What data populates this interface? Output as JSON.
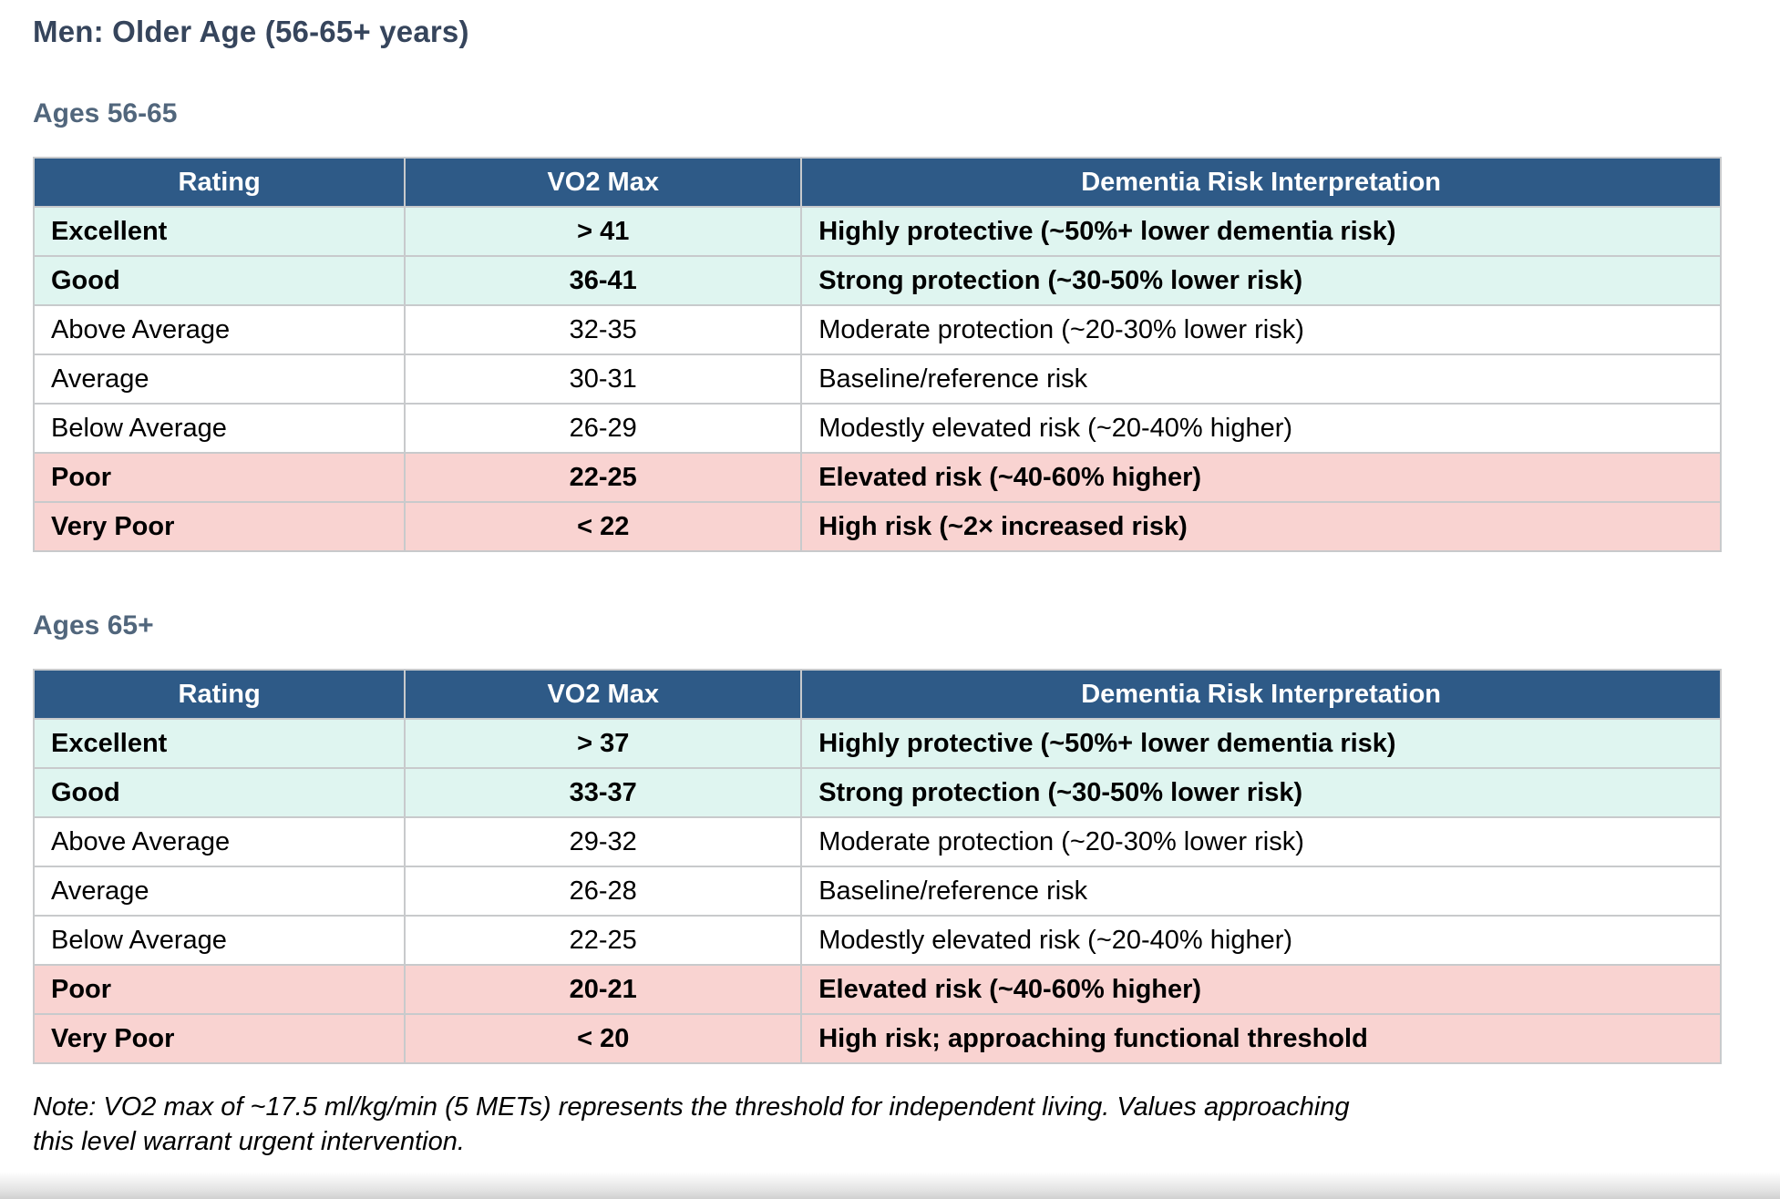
{
  "page": {
    "title": "Men: Older Age (56-65+ years)",
    "note": "Note: VO2 max of ~17.5 ml/kg/min (5 METs) represents the threshold for independent living. Values approaching this level warrant urgent intervention."
  },
  "colors": {
    "header_bg": "#2E5A87",
    "mint_bg": "#DFF5F0",
    "pink_bg": "#F9D3D1",
    "title_color": "#36455C",
    "subtitle_color": "#51667C",
    "border_color": "#C8CACC"
  },
  "chart_data": [
    {
      "type": "table",
      "title": "Ages 56-65",
      "columns": [
        "Rating",
        "VO2 Max",
        "Dementia Risk Interpretation"
      ],
      "rows": [
        {
          "rating": "Excellent",
          "vo2": "> 41",
          "interpretation": "Highly protective (~50%+ lower dementia risk)",
          "tone": "good",
          "bold": true
        },
        {
          "rating": "Good",
          "vo2": "36-41",
          "interpretation": "Strong protection (~30-50% lower risk)",
          "tone": "good",
          "bold": true
        },
        {
          "rating": "Above Average",
          "vo2": "32-35",
          "interpretation": "Moderate protection (~20-30% lower risk)",
          "tone": "neutral",
          "bold": false
        },
        {
          "rating": "Average",
          "vo2": "30-31",
          "interpretation": "Baseline/reference risk",
          "tone": "neutral",
          "bold": false
        },
        {
          "rating": "Below Average",
          "vo2": "26-29",
          "interpretation": "Modestly elevated risk (~20-40% higher)",
          "tone": "neutral",
          "bold": false
        },
        {
          "rating": "Poor",
          "vo2": "22-25",
          "interpretation": "Elevated risk (~40-60% higher)",
          "tone": "bad",
          "bold": true
        },
        {
          "rating": "Very Poor",
          "vo2": "< 22",
          "interpretation": "High risk (~2× increased risk)",
          "tone": "bad",
          "bold": true
        }
      ]
    },
    {
      "type": "table",
      "title": "Ages 65+",
      "columns": [
        "Rating",
        "VO2 Max",
        "Dementia Risk Interpretation"
      ],
      "rows": [
        {
          "rating": "Excellent",
          "vo2": "> 37",
          "interpretation": "Highly protective (~50%+ lower dementia risk)",
          "tone": "good",
          "bold": true
        },
        {
          "rating": "Good",
          "vo2": "33-37",
          "interpretation": "Strong protection (~30-50% lower risk)",
          "tone": "good",
          "bold": true
        },
        {
          "rating": "Above Average",
          "vo2": "29-32",
          "interpretation": "Moderate protection (~20-30% lower risk)",
          "tone": "neutral",
          "bold": false
        },
        {
          "rating": "Average",
          "vo2": "26-28",
          "interpretation": "Baseline/reference risk",
          "tone": "neutral",
          "bold": false
        },
        {
          "rating": "Below Average",
          "vo2": "22-25",
          "interpretation": "Modestly elevated risk (~20-40% higher)",
          "tone": "neutral",
          "bold": false
        },
        {
          "rating": "Poor",
          "vo2": "20-21",
          "interpretation": "Elevated risk (~40-60% higher)",
          "tone": "bad",
          "bold": true
        },
        {
          "rating": "Very Poor",
          "vo2": "< 20",
          "interpretation": "High risk; approaching functional threshold",
          "tone": "bad",
          "bold": true
        }
      ]
    }
  ]
}
